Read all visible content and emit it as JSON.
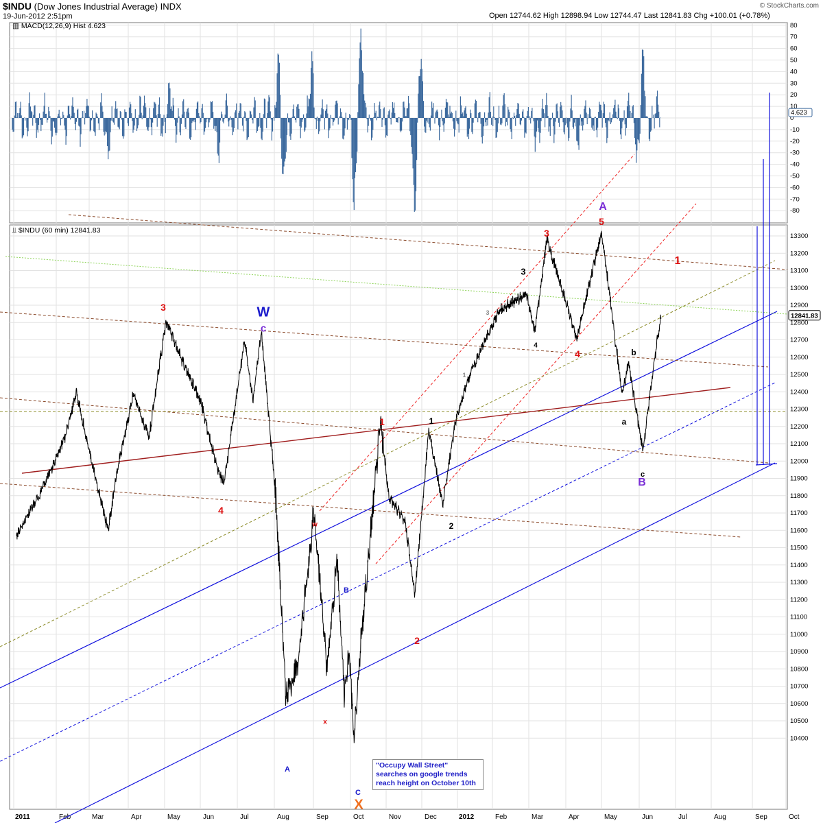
{
  "header": {
    "symbol": "$INDU",
    "name": "(Dow Jones Industrial Average) INDX",
    "date": "19-Jun-2012 2:51pm",
    "ohlc": "Open 12744.62  High 12898.94  Low 12744.47  Last 12841.83  Chg +100.01 (+0.78%)",
    "logo": "© StockCharts.com"
  },
  "colors": {
    "price": "#000000",
    "macd_hist": "#3d6a9e",
    "red_label": "#dd1111",
    "blue_label": "#1a1acc",
    "purple_label": "#7a2fd6",
    "orange_label": "#f07020",
    "black_label": "#000000",
    "blue_channel": "#1010dd",
    "red_channel": "#ee2222",
    "brown_line": "#8b4a2b",
    "maroon_line": "#a01e1e",
    "green_line": "#8fd45a",
    "olive_line": "#8c8c2a"
  },
  "macd_panel": {
    "title": "MACD(12,26,9) Hist 4.623",
    "last_value": "4.623",
    "yticks": [
      "80",
      "70",
      "60",
      "50",
      "40",
      "30",
      "20",
      "10",
      "0",
      "-10",
      "-20",
      "-30",
      "-40",
      "-50",
      "-60",
      "-70",
      "-80"
    ]
  },
  "price_panel": {
    "title": "$INDU (60 min) 12841.83",
    "last_value": "12841.83",
    "yticks": [
      "13300",
      "13200",
      "13100",
      "13000",
      "12900",
      "12800",
      "12700",
      "12600",
      "12500",
      "12400",
      "12300",
      "12200",
      "12100",
      "12000",
      "11900",
      "11800",
      "11700",
      "11600",
      "11500",
      "11400",
      "11300",
      "11200",
      "11100",
      "11000",
      "10900",
      "10800",
      "10700",
      "10600",
      "10500",
      "10400"
    ]
  },
  "x_axis": {
    "labels": [
      "2011",
      "Feb",
      "Mar",
      "Apr",
      "May",
      "Jun",
      "Jul",
      "Aug",
      "Sep",
      "Oct",
      "Nov",
      "Dec",
      "2012",
      "Feb",
      "Mar",
      "Apr",
      "May",
      "Jun",
      "Jul",
      "Aug",
      "Sep",
      "Oct"
    ]
  },
  "wave_labels": [
    {
      "text": "3",
      "color": "red",
      "size": 14
    },
    {
      "text": "W",
      "color": "blue",
      "size": 20
    },
    {
      "text": "c",
      "color": "purple",
      "size": 15
    },
    {
      "text": "4",
      "color": "red",
      "size": 14
    },
    {
      "text": "w",
      "color": "red",
      "size": 10
    },
    {
      "text": "x",
      "color": "red",
      "size": 10
    },
    {
      "text": "A",
      "color": "blue",
      "size": 11
    },
    {
      "text": "B",
      "color": "blue",
      "size": 11
    },
    {
      "text": "C",
      "color": "blue",
      "size": 11
    },
    {
      "text": "X",
      "color": "orange",
      "size": 20
    },
    {
      "text": "1",
      "color": "red",
      "size": 14
    },
    {
      "text": "2",
      "color": "red",
      "size": 14
    },
    {
      "text": "1",
      "color": "black",
      "size": 12
    },
    {
      "text": "2",
      "color": "black",
      "size": 12
    },
    {
      "text": "1",
      "color": "gray",
      "size": 9
    },
    {
      "text": "3",
      "color": "gray",
      "size": 9
    },
    {
      "text": "3",
      "color": "black",
      "size": 13
    },
    {
      "text": "4",
      "color": "black",
      "size": 10
    },
    {
      "text": "3",
      "color": "red",
      "size": 14
    },
    {
      "text": "4",
      "color": "red",
      "size": 14
    },
    {
      "text": "A",
      "color": "purple",
      "size": 16
    },
    {
      "text": "5",
      "color": "red",
      "size": 14
    },
    {
      "text": "1",
      "color": "red",
      "size": 16
    },
    {
      "text": "b",
      "color": "black",
      "size": 12
    },
    {
      "text": "a",
      "color": "black",
      "size": 12
    },
    {
      "text": "c",
      "color": "black",
      "size": 11
    },
    {
      "text": "B",
      "color": "purple",
      "size": 16
    }
  ],
  "annotation": {
    "text": "\"Occupy Wall Street\" searches on google trends reach height on October 10th"
  },
  "chart_data": {
    "type": "line",
    "title": "$INDU (Dow Jones Industrial Average) INDX",
    "interval": "60 min",
    "x_range": [
      "2011-01",
      "2012-10"
    ],
    "ylim": [
      10400,
      13350
    ],
    "grid": true,
    "series": [
      {
        "name": "$INDU (60 min)",
        "points": [
          [
            "2011-01-03",
            11570
          ],
          [
            "2011-01-20",
            11810
          ],
          [
            "2011-02-08",
            12130
          ],
          [
            "2011-02-18",
            12400
          ],
          [
            "2011-03-01",
            12050
          ],
          [
            "2011-03-16",
            11600
          ],
          [
            "2011-03-22",
            11900
          ],
          [
            "2011-04-05",
            12390
          ],
          [
            "2011-04-18",
            12130
          ],
          [
            "2011-05-02",
            12810
          ],
          [
            "2011-05-18",
            12550
          ],
          [
            "2011-06-01",
            12350
          ],
          [
            "2011-06-15",
            11950
          ],
          [
            "2011-06-20",
            11870
          ],
          [
            "2011-07-07",
            12700
          ],
          [
            "2011-07-14",
            12350
          ],
          [
            "2011-07-21",
            12750
          ],
          [
            "2011-08-02",
            11800
          ],
          [
            "2011-08-10",
            10650
          ],
          [
            "2011-08-19",
            10800
          ],
          [
            "2011-08-31",
            11610
          ],
          [
            "2011-09-01",
            11720
          ],
          [
            "2011-09-12",
            10800
          ],
          [
            "2011-09-20",
            11450
          ],
          [
            "2011-09-26",
            10650
          ],
          [
            "2011-09-30",
            10900
          ],
          [
            "2011-10-04",
            10400
          ],
          [
            "2011-10-10",
            10950
          ],
          [
            "2011-10-27",
            12230
          ],
          [
            "2011-11-03",
            11800
          ],
          [
            "2011-11-17",
            11650
          ],
          [
            "2011-11-25",
            11230
          ],
          [
            "2011-12-07",
            12180
          ],
          [
            "2011-12-19",
            11750
          ],
          [
            "2011-12-30",
            12220
          ],
          [
            "2012-01-10",
            12470
          ],
          [
            "2012-02-06",
            12870
          ],
          [
            "2012-02-28",
            12960
          ],
          [
            "2012-03-06",
            12750
          ],
          [
            "2012-03-16",
            13280
          ],
          [
            "2012-04-10",
            12710
          ],
          [
            "2012-05-01",
            13320
          ],
          [
            "2012-05-18",
            12380
          ],
          [
            "2012-05-23",
            12570
          ],
          [
            "2012-06-04",
            12060
          ],
          [
            "2012-06-13",
            12560
          ],
          [
            "2012-06-19",
            12841.83
          ]
        ]
      },
      {
        "name": "MACD(12,26,9) Hist",
        "note": "hourly histogram oscillating between about -80 and +80",
        "points": [
          [
            "2011-02-02",
            -14
          ],
          [
            "2011-03-16",
            -20
          ],
          [
            "2011-05-05",
            20
          ],
          [
            "2011-06-15",
            -25
          ],
          [
            "2011-08-04",
            55
          ],
          [
            "2011-08-08",
            -60
          ],
          [
            "2011-08-31",
            48
          ],
          [
            "2011-10-04",
            -80
          ],
          [
            "2011-10-10",
            80
          ],
          [
            "2011-11-25",
            -70
          ],
          [
            "2011-11-30",
            50
          ],
          [
            "2012-03-06",
            -20
          ],
          [
            "2012-04-10",
            -25
          ],
          [
            "2012-05-31",
            -30
          ],
          [
            "2012-06-04",
            48
          ],
          [
            "2012-06-19",
            4.623
          ]
        ]
      }
    ],
    "trendlines": "channel and trend lines as drawn on chart (blue, red dashed, brown dashed, green dotted, olive dashed, maroon)"
  }
}
